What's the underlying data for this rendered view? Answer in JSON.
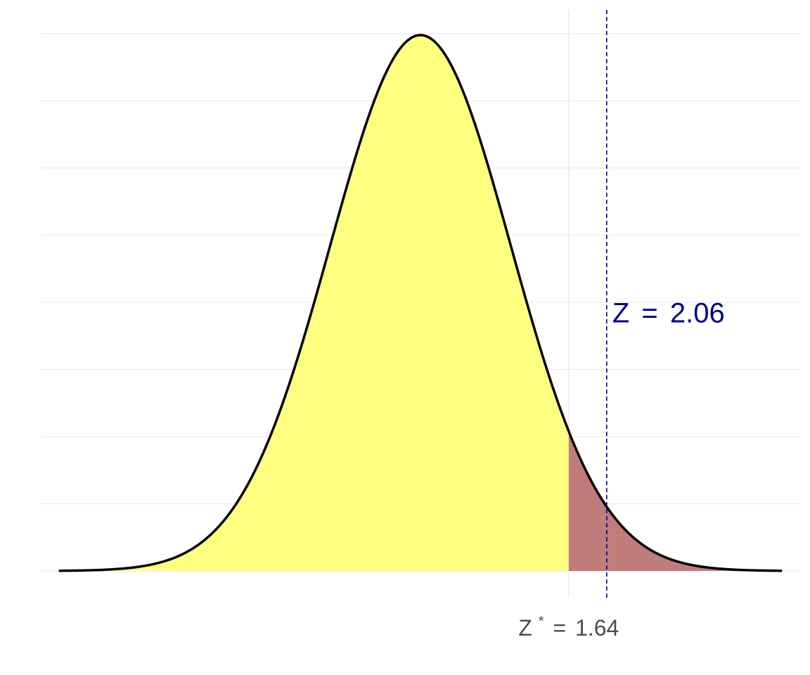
{
  "chart_data": {
    "type": "area",
    "title": "",
    "xlabel": "",
    "ylabel": "",
    "distribution": "standard normal density",
    "xlim": [
      -4.2,
      4.2
    ],
    "ylim": [
      0,
      0.3989
    ],
    "y_gridlines": [
      0,
      0.05,
      0.1,
      0.15,
      0.2,
      0.25,
      0.3,
      0.35,
      0.4
    ],
    "grid": true,
    "series": [
      {
        "region": "acceptance",
        "x_range": [
          -4.0,
          1.64
        ],
        "fill_color": "#ffff80"
      },
      {
        "region": "rejection",
        "x_range": [
          1.64,
          4.0
        ],
        "fill_color": "#c07b7b"
      }
    ],
    "critical_value": {
      "x": 1.64,
      "label_prefix": "Z",
      "label_superscript": "*",
      "label_equals": "=",
      "label_value": "1.64",
      "label_color": "#4d4d4d"
    },
    "test_statistic": {
      "x": 2.06,
      "label_prefix": "Z",
      "label_equals": "=",
      "label_value": "2.06",
      "line_color": "#00008b",
      "label_color": "#00008b"
    },
    "colors": {
      "curve": "#000000",
      "gridline": "#ebebeb"
    }
  }
}
